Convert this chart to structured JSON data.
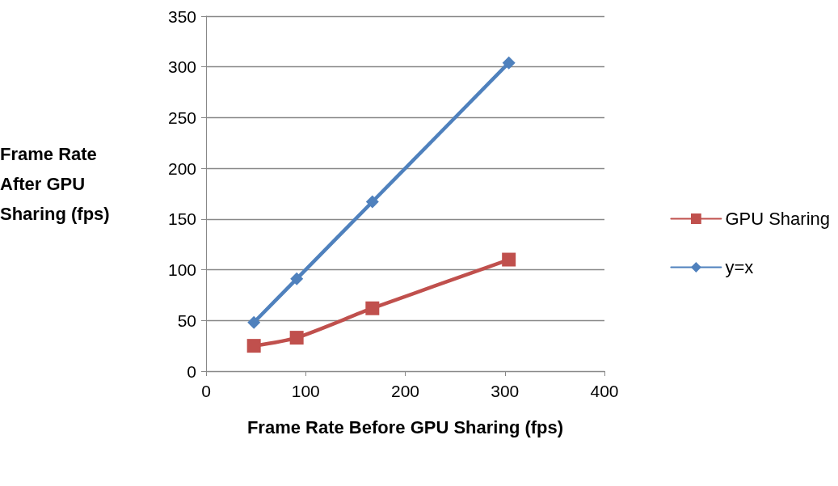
{
  "chart_data": {
    "type": "line",
    "xlabel": "Frame Rate Before GPU Sharing (fps)",
    "ylabel": "Frame Rate After GPU Sharing (fps)",
    "xlim": [
      0,
      400
    ],
    "xticks": [
      0,
      100,
      200,
      300,
      400
    ],
    "ylim": [
      0,
      350
    ],
    "yticks": [
      0,
      50,
      100,
      150,
      200,
      250,
      300,
      350
    ],
    "grid": "y",
    "legend": "right",
    "line_style": "solid",
    "series": [
      {
        "name": "GPU Sharing",
        "color": "#c0504d",
        "marker": "square",
        "x": [
          48,
          91,
          167,
          304
        ],
        "values": [
          25,
          33,
          62,
          110
        ]
      },
      {
        "name": "y=x",
        "color": "#4f81bd",
        "marker": "diamond",
        "x": [
          48,
          91,
          167,
          304
        ],
        "values": [
          48,
          91,
          167,
          304
        ]
      }
    ]
  }
}
